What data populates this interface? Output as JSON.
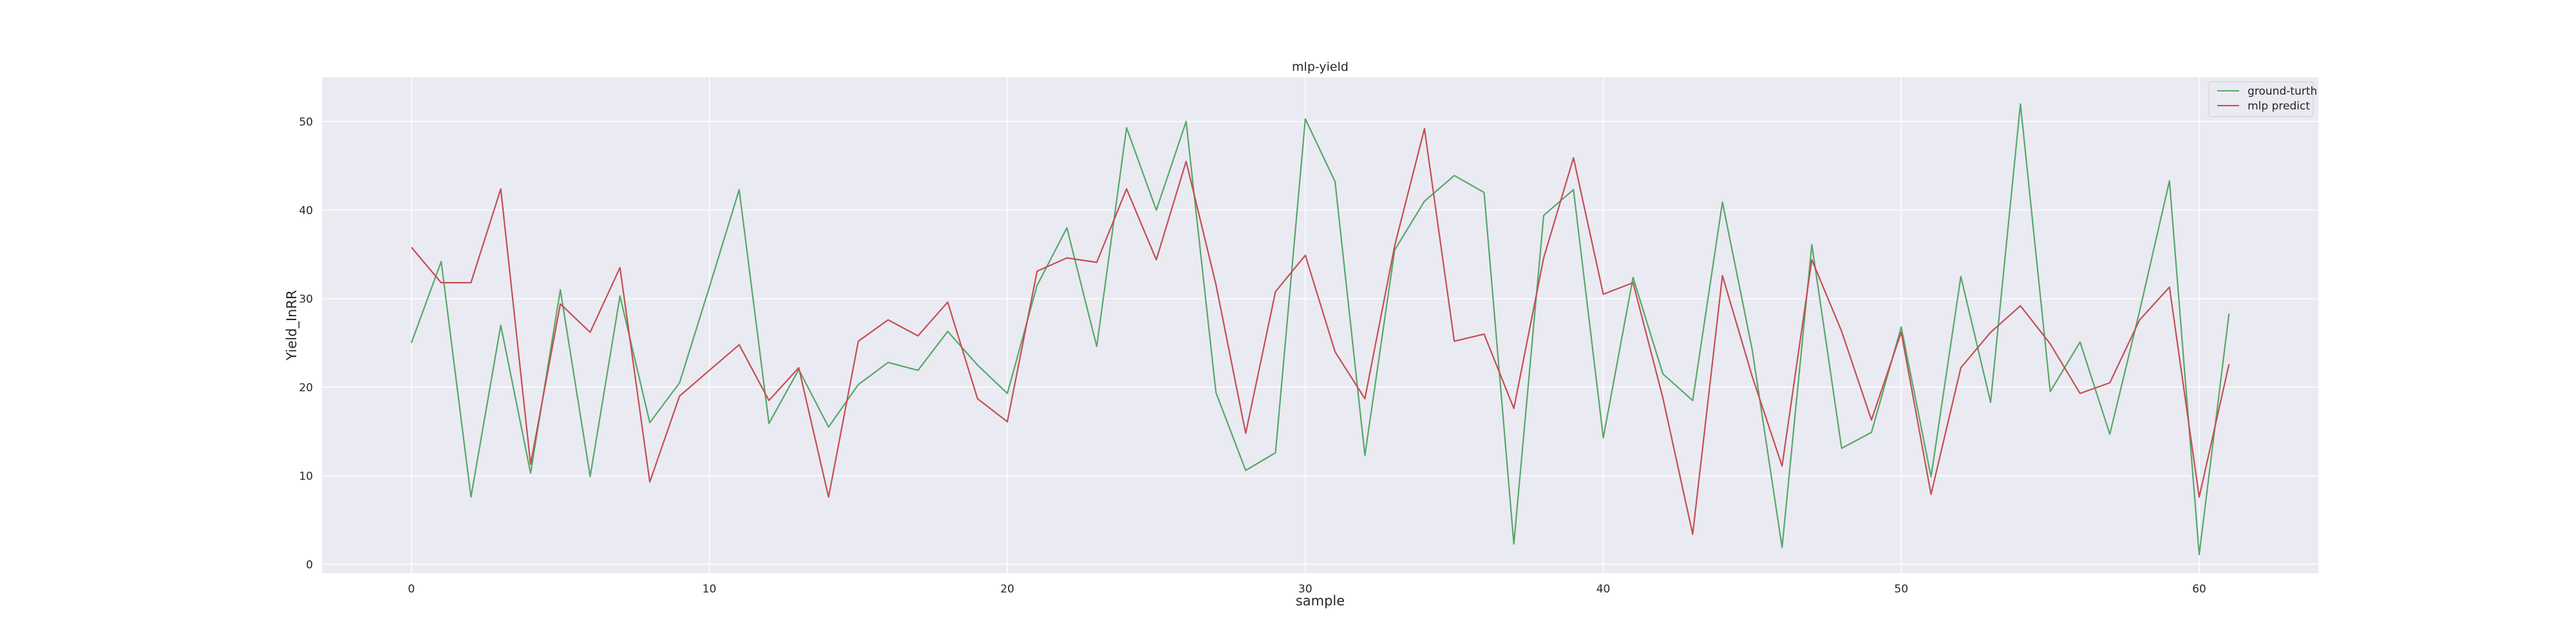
{
  "chart_data": {
    "type": "line",
    "title": "mlp-yield",
    "xlabel": "sample",
    "ylabel": "Yield_InRR",
    "xlim": [
      -3,
      64
    ],
    "ylim": [
      -1,
      55
    ],
    "xticks": [
      0,
      10,
      20,
      30,
      40,
      50,
      60
    ],
    "yticks": [
      0,
      10,
      20,
      30,
      40,
      50
    ],
    "grid": true,
    "legend_position": "top-right",
    "x": [
      0,
      1,
      2,
      3,
      4,
      5,
      6,
      7,
      8,
      9,
      10,
      11,
      12,
      13,
      14,
      15,
      16,
      17,
      18,
      19,
      20,
      21,
      22,
      23,
      24,
      25,
      26,
      27,
      28,
      29,
      30,
      31,
      32,
      33,
      34,
      35,
      36,
      37,
      38,
      39,
      40,
      41,
      42,
      43,
      44,
      45,
      46,
      47,
      48,
      49,
      50,
      51,
      52,
      53,
      54,
      55,
      56,
      57,
      58,
      59,
      60,
      61
    ],
    "series": [
      {
        "name": "ground-turth",
        "color": "#55a868",
        "values": [
          25,
          34.2,
          7.6,
          27,
          10.3,
          31,
          9.9,
          30.3,
          16,
          20.5,
          31.3,
          42.3,
          15.9,
          22,
          15.5,
          20.3,
          22.8,
          21.9,
          26.3,
          22.5,
          19.3,
          31.5,
          38,
          24.6,
          49.3,
          40,
          50,
          19.4,
          10.6,
          12.6,
          50.3,
          43.2,
          12.3,
          35.5,
          41,
          43.9,
          42,
          2.3,
          39.4,
          42.3,
          14.3,
          32.4,
          21.5,
          18.5,
          40.9,
          24.2,
          1.9,
          36.1,
          13.1,
          14.9,
          26.8,
          9.9,
          32.5,
          18.3,
          52,
          19.5,
          25.1,
          14.7,
          28.6,
          43.3,
          1.1,
          28.3
        ]
      },
      {
        "name": "mlp predict",
        "color": "#c44e52",
        "values": [
          35.8,
          31.8,
          31.8,
          42.4,
          11.3,
          29.4,
          26.2,
          33.5,
          9.3,
          19,
          21.9,
          24.8,
          18.5,
          22.2,
          7.6,
          25.2,
          27.6,
          25.8,
          29.6,
          18.7,
          16.1,
          33.1,
          34.6,
          34.1,
          42.4,
          34.4,
          45.5,
          31.6,
          14.8,
          30.8,
          34.9,
          24,
          18.7,
          36,
          49.2,
          25.2,
          26,
          17.6,
          34.6,
          45.9,
          30.5,
          31.8,
          18.8,
          3.4,
          32.6,
          21.2,
          11.1,
          34.4,
          26.3,
          16.3,
          26.2,
          7.9,
          22.2,
          26.2,
          29.2,
          24.9,
          19.3,
          20.5,
          27.6,
          31.3,
          7.6,
          22.6
        ]
      }
    ]
  }
}
